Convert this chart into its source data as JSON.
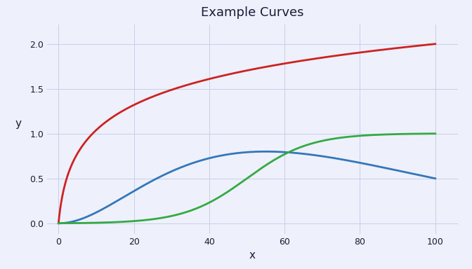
{
  "title": "Example Curves",
  "xlabel": "x",
  "ylabel": "y",
  "xlim": [
    -3,
    106
  ],
  "ylim": [
    -0.12,
    2.22
  ],
  "x_ticks": [
    0,
    20,
    40,
    60,
    80,
    100
  ],
  "y_ticks": [
    0,
    0.5,
    1,
    1.5,
    2
  ],
  "background_color": "#eef0fb",
  "grid_color": "#c8cee8",
  "title_color": "#1a1a3a",
  "axis_label_color": "#1a1a3a",
  "tick_color": "#1a1a3a",
  "red_color": "#cc2222",
  "blue_color": "#3377bb",
  "green_color": "#33aa44",
  "line_width": 2.0,
  "title_fontsize": 13,
  "label_fontsize": 11,
  "tick_fontsize": 9
}
